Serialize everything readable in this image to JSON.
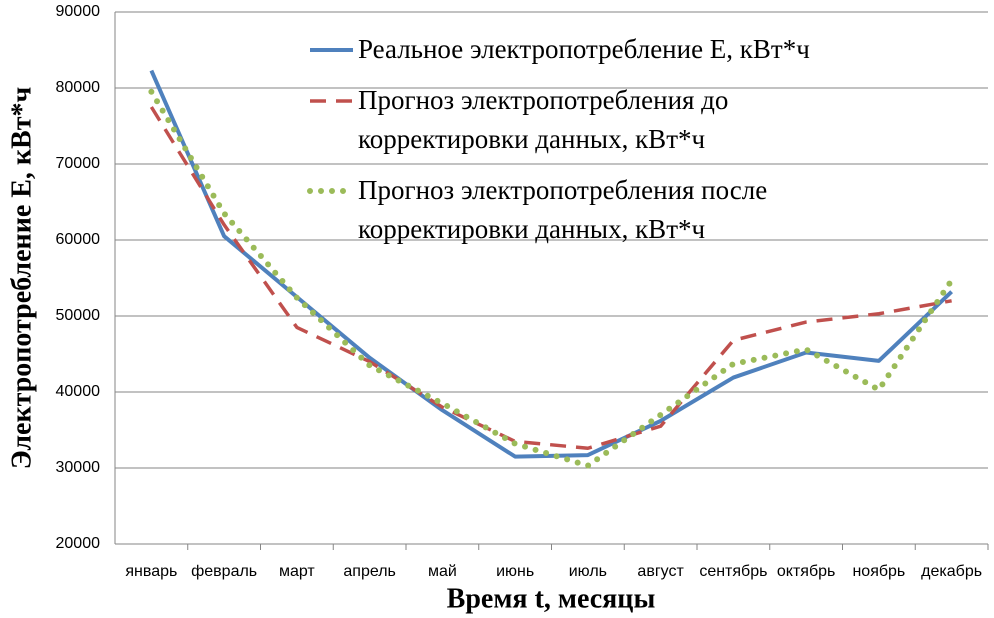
{
  "chart_data": {
    "type": "line",
    "x_label": "Время t, месяцы",
    "y_label": "Электропотребление Е, кВт*ч",
    "categories": [
      "январь",
      "февраль",
      "март",
      "апрель",
      "май",
      "июнь",
      "июль",
      "август",
      "сентябрь",
      "октябрь",
      "ноябрь",
      "декабрь"
    ],
    "series": [
      {
        "name": "Реальное электропотребление Е, кВт*ч",
        "color": "#4f81bd",
        "style": "solid",
        "values": [
          82300,
          60500,
          52500,
          44500,
          37600,
          31500,
          31700,
          36200,
          41900,
          45200,
          44100,
          53200
        ]
      },
      {
        "name": "Прогноз электропотребления до корректировки данных, кВт*ч",
        "color": "#c0504d",
        "style": "dashed",
        "values": [
          77500,
          62000,
          48500,
          44000,
          38000,
          33500,
          32600,
          35500,
          46800,
          49200,
          50300,
          52000
        ]
      },
      {
        "name": "Прогноз электропотребления после корректировки данных, кВт*ч",
        "color": "#9bbb59",
        "style": "dotted",
        "values": [
          79500,
          63500,
          52400,
          43500,
          38500,
          33200,
          30300,
          37000,
          43700,
          45600,
          40300,
          54700
        ]
      }
    ],
    "ylim": [
      20000,
      90000
    ],
    "yticks": [
      20000,
      30000,
      40000,
      50000,
      60000,
      70000,
      80000,
      90000
    ],
    "grid": true,
    "legend": "top"
  }
}
